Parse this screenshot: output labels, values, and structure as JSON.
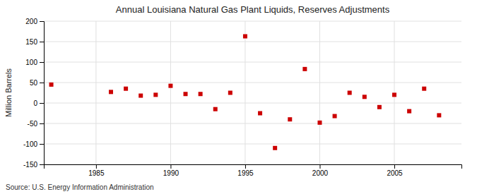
{
  "chart_data": {
    "type": "scatter",
    "title": "Annual Louisiana Natural Gas Plant Liquids, Reserves Adjustments",
    "ylabel": "Million Barrels",
    "annotation": "Source: U.S. Energy Information Administration",
    "x": [
      1982,
      1986,
      1987,
      1988,
      1989,
      1990,
      1991,
      1992,
      1993,
      1994,
      1995,
      1996,
      1997,
      1998,
      1999,
      2000,
      2001,
      2002,
      2003,
      2004,
      2005,
      2006,
      2007,
      2008
    ],
    "values": [
      45,
      27,
      35,
      18,
      20,
      42,
      22,
      22,
      -15,
      25,
      163,
      -25,
      -110,
      -40,
      83,
      -48,
      -32,
      25,
      15,
      -10,
      20,
      -20,
      35,
      -30
    ],
    "color": "#cc0000",
    "marker": "square",
    "xlim": [
      1981.5,
      2009.5
    ],
    "ylim": [
      -150,
      200
    ],
    "xticks": [
      1985,
      1990,
      1995,
      2000,
      2005
    ],
    "yticks": [
      -150,
      -100,
      -50,
      0,
      50,
      100,
      150,
      200
    ],
    "grid": true
  }
}
